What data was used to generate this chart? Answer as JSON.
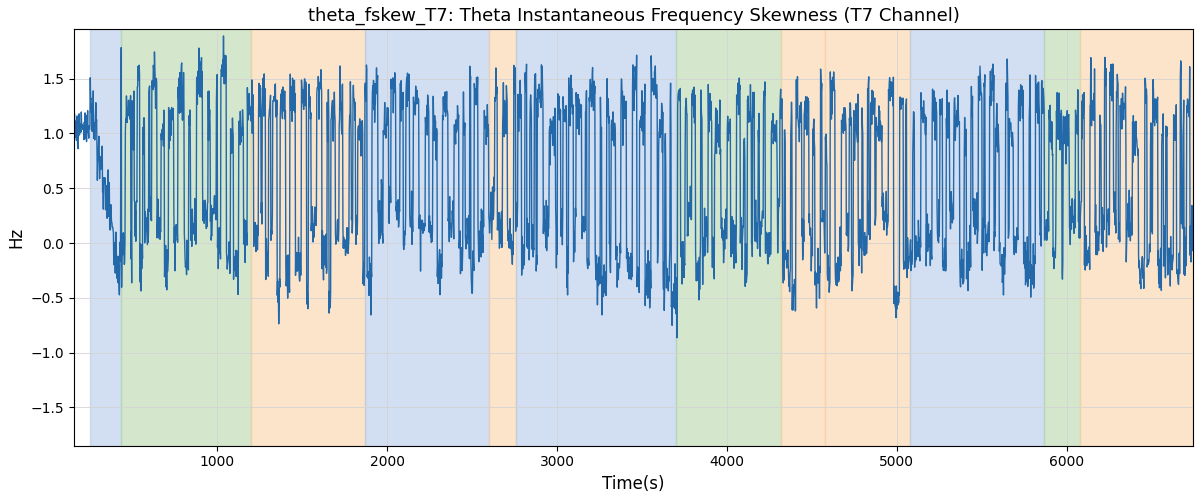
{
  "title": "theta_fskew_T7: Theta Instantaneous Frequency Skewness (T7 Channel)",
  "xlabel": "Time(s)",
  "ylabel": "Hz",
  "xlim": [
    155,
    6745
  ],
  "ylim": [
    -1.85,
    1.95
  ],
  "yticks": [
    -1.5,
    -1.0,
    -0.5,
    0.0,
    0.5,
    1.0,
    1.5
  ],
  "line_color": "#2368a8",
  "line_width": 1.0,
  "bg_regions": [
    {
      "xmin": 250,
      "xmax": 430,
      "color": "#aec6e8",
      "alpha": 0.55
    },
    {
      "xmin": 430,
      "xmax": 1200,
      "color": "#b2d4a4",
      "alpha": 0.55
    },
    {
      "xmin": 1200,
      "xmax": 1870,
      "color": "#f9cfa0",
      "alpha": 0.55
    },
    {
      "xmin": 1870,
      "xmax": 2600,
      "color": "#aec6e8",
      "alpha": 0.55
    },
    {
      "xmin": 2600,
      "xmax": 2760,
      "color": "#f9cfa0",
      "alpha": 0.55
    },
    {
      "xmin": 2760,
      "xmax": 3700,
      "color": "#aec6e8",
      "alpha": 0.55
    },
    {
      "xmin": 3700,
      "xmax": 4320,
      "color": "#b2d4a4",
      "alpha": 0.55
    },
    {
      "xmin": 4320,
      "xmax": 4580,
      "color": "#f9cfa0",
      "alpha": 0.55
    },
    {
      "xmin": 4580,
      "xmax": 5080,
      "color": "#f9cfa0",
      "alpha": 0.55
    },
    {
      "xmin": 5080,
      "xmax": 5870,
      "color": "#aec6e8",
      "alpha": 0.55
    },
    {
      "xmin": 5870,
      "xmax": 6080,
      "color": "#b2d4a4",
      "alpha": 0.55
    },
    {
      "xmin": 6080,
      "xmax": 6745,
      "color": "#f9cfa0",
      "alpha": 0.55
    }
  ],
  "t_start": 155,
  "t_end": 6745,
  "n_points": 3000
}
